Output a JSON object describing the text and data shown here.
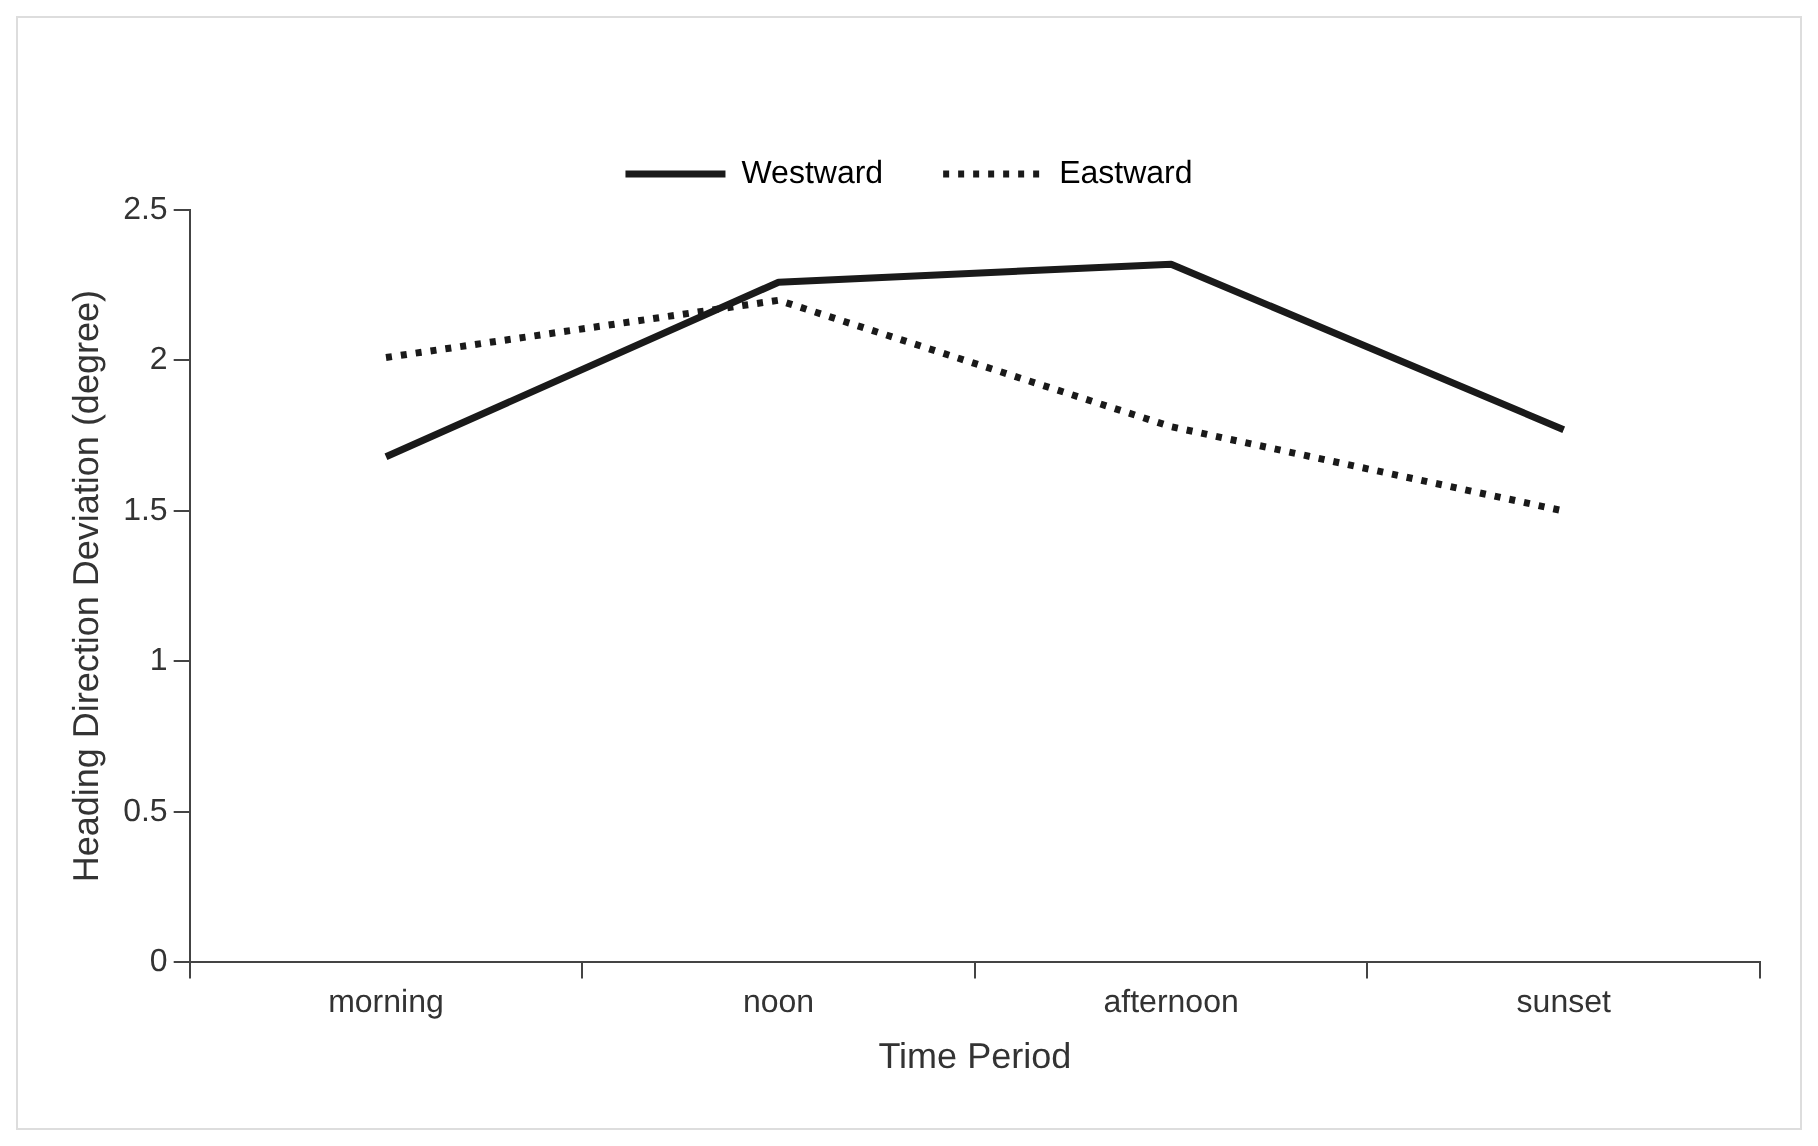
{
  "chart_data": {
    "type": "line",
    "xlabel": "Time Period",
    "ylabel": "Heading Direction Deviation (degree)",
    "categories": [
      "morning",
      "noon",
      "afternoon",
      "sunset"
    ],
    "series": [
      {
        "name": "Westward",
        "color": "#1a1a1a",
        "line_style": "solid",
        "values": [
          1.68,
          2.26,
          2.32,
          1.77
        ]
      },
      {
        "name": "Eastward",
        "color": "#1a1a1a",
        "line_style": "dotted",
        "values": [
          2.01,
          2.2,
          1.78,
          1.5
        ]
      }
    ],
    "ylim": [
      0,
      2.5
    ],
    "yticks": [
      0,
      0.5,
      1,
      1.5,
      2,
      2.5
    ],
    "grid": false,
    "legend": "top",
    "marker": "none"
  }
}
